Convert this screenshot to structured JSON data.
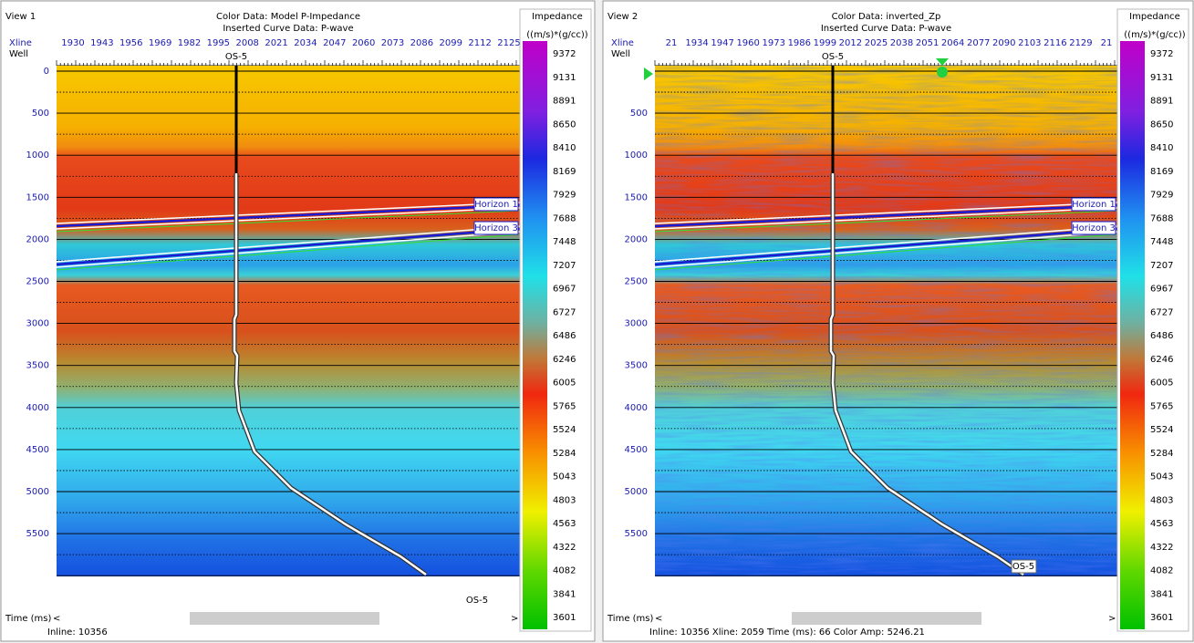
{
  "views": [
    {
      "name": "View 1",
      "title": "Color Data: Model P-Impedance",
      "subtitle": "Inserted Curve Data: P-wave",
      "xline_label": "Xline",
      "well_label": "Well",
      "xlines": [
        "1930",
        "1943",
        "1956",
        "1969",
        "1982",
        "1995",
        "2008",
        "2021",
        "2034",
        "2047",
        "2060",
        "2073",
        "2086",
        "2099",
        "2112",
        "2125"
      ],
      "times": [
        0,
        500,
        1000,
        1500,
        2000,
        2500,
        3000,
        3500,
        4000,
        4500,
        5000,
        5500
      ],
      "well_top": "OS-5",
      "well_bottom": "OS-5",
      "horizons": [
        "Horizon 1",
        "Horizon 3"
      ],
      "colorbar": {
        "title": "Impedance",
        "unit": "((m/s)*(g/cc))",
        "labels": [
          "9372",
          "9131",
          "8891",
          "8650",
          "8410",
          "8169",
          "7929",
          "7688",
          "7448",
          "7207",
          "6967",
          "6727",
          "6486",
          "6246",
          "6005",
          "5765",
          "5524",
          "5284",
          "5043",
          "4803",
          "4563",
          "4322",
          "4082",
          "3841",
          "3601"
        ]
      },
      "time_axis": "Time (ms)",
      "scroll_left": "<",
      "scroll_right": ">",
      "status": "Inline: 10356"
    },
    {
      "name": "View 2",
      "title": "Color Data: inverted_Zp",
      "subtitle": "Inserted Curve Data: P-wave",
      "xline_label": "Xline",
      "well_label": "Well",
      "xlines": [
        "21",
        "1934",
        "1947",
        "1960",
        "1973",
        "1986",
        "1999",
        "2012",
        "2025",
        "2038",
        "2051",
        "2064",
        "2077",
        "2090",
        "2103",
        "2116",
        "2129",
        "21"
      ],
      "times": [
        500,
        1000,
        1500,
        2000,
        2500,
        3000,
        3500,
        4000,
        4500,
        5000,
        5500
      ],
      "well_top": "OS-5",
      "well_bottom": "OS-5",
      "horizons": [
        "Horizon 1",
        "Horizon 3"
      ],
      "colorbar": {
        "title": "Impedance",
        "unit": "((m/s)*(g/cc))",
        "labels": [
          "9372",
          "9131",
          "8891",
          "8650",
          "8410",
          "8169",
          "7929",
          "7688",
          "7448",
          "7207",
          "6967",
          "6727",
          "6486",
          "6246",
          "6005",
          "5765",
          "5524",
          "5284",
          "5043",
          "4803",
          "4563",
          "4322",
          "4082",
          "3841",
          "3601"
        ]
      },
      "time_axis": "Time (ms)",
      "scroll_left": "<",
      "scroll_right": ">",
      "status": "Inline: 10356  Xline: 2059  Time (ms): 66  Color Amp: 5246.21"
    }
  ]
}
